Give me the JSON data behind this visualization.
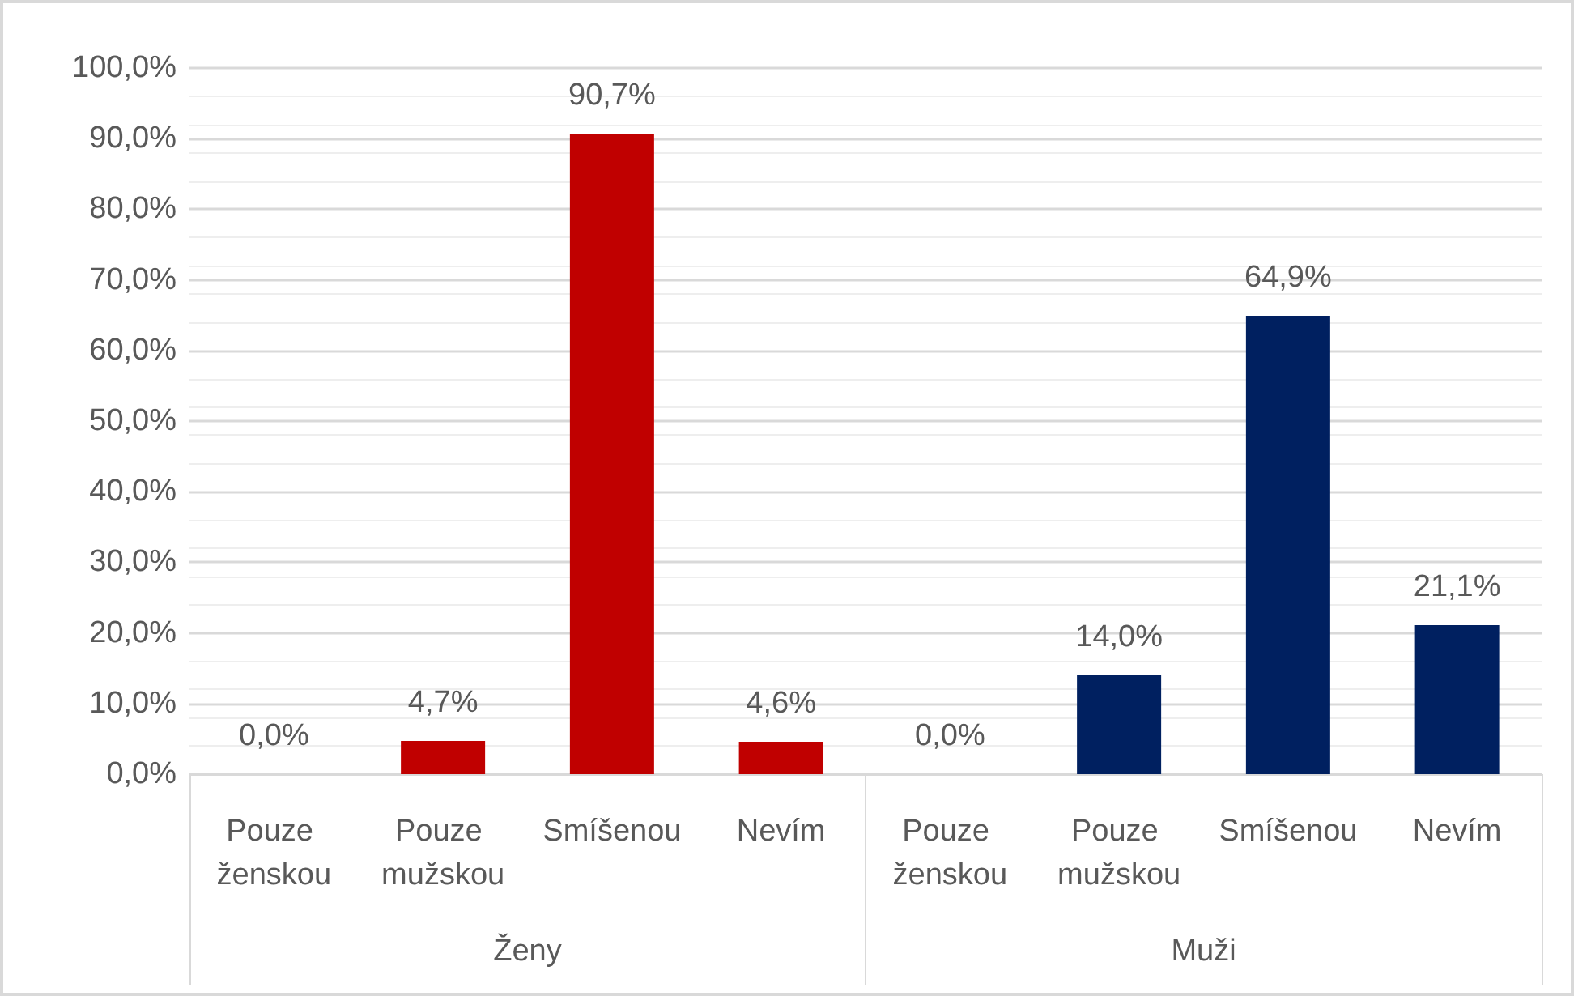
{
  "chart_data": {
    "type": "bar",
    "categories": [
      "Pouze ženskou",
      "Pouze mužskou",
      "Smíšenou",
      "Nevím",
      "Pouze ženskou",
      "Pouze mužskou",
      "Smíšenou",
      "Nevím"
    ],
    "series": [
      {
        "color": "#c00000",
        "values": [
          0,
          4.7,
          90.7,
          4.6,
          null,
          null,
          null,
          null
        ],
        "value_labels": [
          "0,0%",
          "4,7%",
          "90,7%",
          "4,6%",
          null,
          null,
          null,
          null
        ]
      },
      {
        "color": "#002060",
        "values": [
          null,
          null,
          null,
          null,
          0,
          14.0,
          64.9,
          21.1
        ],
        "value_labels": [
          null,
          null,
          null,
          null,
          "0,0%",
          "14,0%",
          "64,9%",
          "21,1%"
        ]
      }
    ],
    "ylim": [
      0,
      100
    ],
    "yticks": [
      {
        "value": 0,
        "label": "0,0%"
      },
      {
        "value": 10,
        "label": "10,0%"
      },
      {
        "value": 20,
        "label": "20,0%"
      },
      {
        "value": 30,
        "label": "30,0%"
      },
      {
        "value": 40,
        "label": "40,0%"
      },
      {
        "value": 50,
        "label": "50,0%"
      },
      {
        "value": 60,
        "label": "60,0%"
      },
      {
        "value": 70,
        "label": "70,0%"
      },
      {
        "value": 80,
        "label": "80,0%"
      },
      {
        "value": 90,
        "label": "90,0%"
      },
      {
        "value": 100,
        "label": "100,0%"
      }
    ],
    "annotations": [
      "Ženy",
      "Muži"
    ],
    "grid": true
  }
}
